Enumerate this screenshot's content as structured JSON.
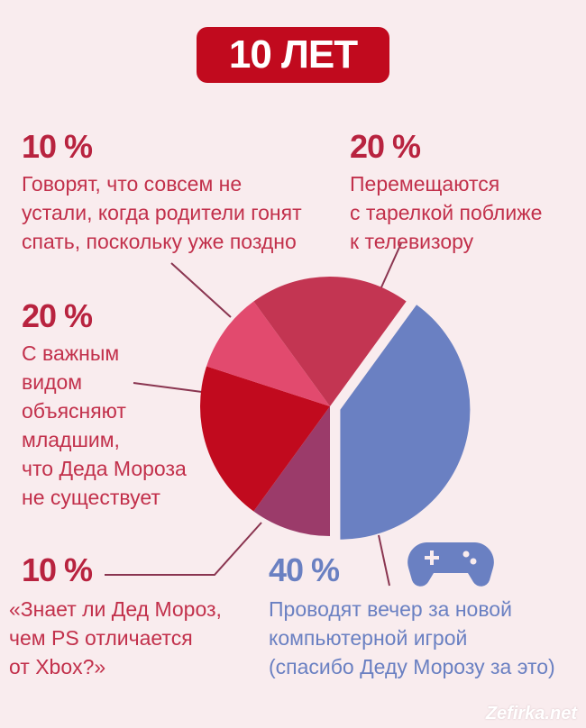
{
  "title": "10 ЛЕТ",
  "watermark": "Zefirka.net",
  "chart_data": {
    "type": "pie",
    "title": "10 ЛЕТ",
    "slices": [
      {
        "label": "Проводят вечер за новой компьютерной игрой (спасибо Деду Морозу за это)",
        "value": 40,
        "pct_label": "40 %",
        "color": "#6a80c2",
        "exploded": true
      },
      {
        "label": "«Знает ли Дед Мороз, чем PS отличается от Xbox?»",
        "value": 10,
        "pct_label": "10 %",
        "color": "#9b3b6a"
      },
      {
        "label": "С важным видом объясняют младшим, что Деда Мороза не существует",
        "value": 20,
        "pct_label": "20 %",
        "color": "#c10a1e"
      },
      {
        "label": "Говорят, что совсем не устали, когда родители гонят спать, поскольку уже поздно",
        "value": 10,
        "pct_label": "10 %",
        "color": "#e24a6e"
      },
      {
        "label": "Перемещаются с тарелкой поближе к телевизору",
        "value": 20,
        "pct_label": "20 %",
        "color": "#c33552"
      }
    ]
  },
  "labels": {
    "a": {
      "pct": "10 %",
      "text": "Говорят, что совсем не\nустали, когда родители гонят\nспать, поскольку уже поздно"
    },
    "b": {
      "pct": "20 %",
      "text": "Перемещаются\nс тарелкой поближе\nк телевизору"
    },
    "c": {
      "pct": "20 %",
      "text": "С важным\nвидом\nобъясняют\nмладшим,\nчто Деда Мороза\nне существует"
    },
    "d": {
      "pct": "10 %",
      "text": "«Знает ли Дед Мороз,\nчем PS отличается\nот Xbox?»"
    },
    "e": {
      "pct": "40 %",
      "text": "Проводят вечер за новой\nкомпьютерной игрой\n(спасибо Деду Морозу за это)"
    }
  }
}
